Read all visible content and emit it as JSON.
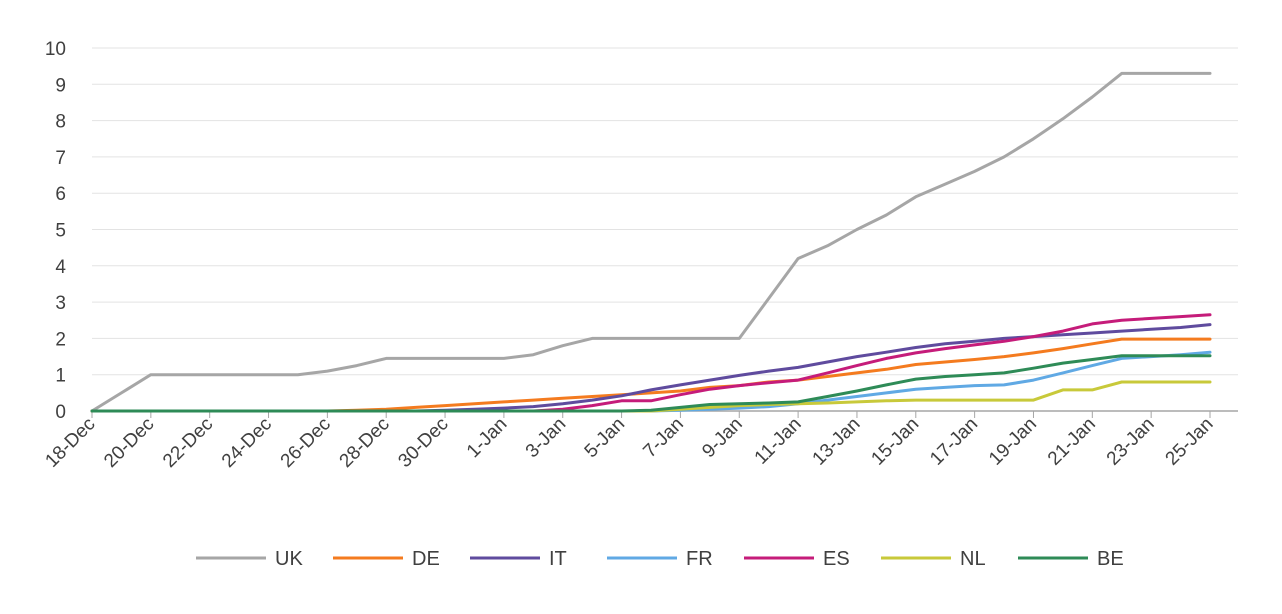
{
  "chart_data": {
    "type": "line",
    "title": "",
    "xlabel": "",
    "ylabel": "",
    "ylim": [
      0,
      10
    ],
    "yticks": [
      0,
      1,
      2,
      3,
      4,
      5,
      6,
      7,
      8,
      9,
      10
    ],
    "grid": "horizontal",
    "legend": "bottom",
    "x": [
      "18-Dec",
      "19-Dec",
      "20-Dec",
      "21-Dec",
      "22-Dec",
      "23-Dec",
      "24-Dec",
      "25-Dec",
      "26-Dec",
      "27-Dec",
      "28-Dec",
      "29-Dec",
      "30-Dec",
      "31-Dec",
      "1-Jan",
      "2-Jan",
      "3-Jan",
      "4-Jan",
      "5-Jan",
      "6-Jan",
      "7-Jan",
      "8-Jan",
      "9-Jan",
      "10-Jan",
      "11-Jan",
      "12-Jan",
      "13-Jan",
      "14-Jan",
      "15-Jan",
      "16-Jan",
      "17-Jan",
      "18-Jan",
      "19-Jan",
      "20-Jan",
      "21-Jan",
      "22-Jan",
      "23-Jan",
      "24-Jan",
      "25-Jan"
    ],
    "xtick_labels": [
      "18-Dec",
      "20-Dec",
      "22-Dec",
      "24-Dec",
      "26-Dec",
      "28-Dec",
      "30-Dec",
      "1-Jan",
      "3-Jan",
      "5-Jan",
      "7-Jan",
      "9-Jan",
      "11-Jan",
      "13-Jan",
      "15-Jan",
      "17-Jan",
      "19-Jan",
      "21-Jan",
      "23-Jan",
      "25-Jan"
    ],
    "series": [
      {
        "name": "UK",
        "color": "#a6a6a6",
        "values": [
          0,
          0.5,
          1,
          1,
          1,
          1,
          1,
          1,
          1.1,
          1.25,
          1.45,
          1.45,
          1.45,
          1.45,
          1.45,
          1.55,
          1.8,
          2,
          2,
          2,
          2,
          2,
          2,
          3.1,
          4.2,
          4.55,
          5,
          5.4,
          5.9,
          6.25,
          6.6,
          7,
          7.5,
          8.05,
          8.65,
          9.3,
          9.3,
          9.3,
          9.3
        ]
      },
      {
        "name": "DE",
        "color": "#f47b1f",
        "values": [
          0,
          0,
          0,
          0,
          0,
          0,
          0,
          0,
          0,
          0.02,
          0.05,
          0.1,
          0.15,
          0.2,
          0.25,
          0.3,
          0.35,
          0.4,
          0.45,
          0.5,
          0.55,
          0.65,
          0.7,
          0.8,
          0.85,
          0.95,
          1.05,
          1.15,
          1.28,
          1.35,
          1.42,
          1.5,
          1.6,
          1.72,
          1.85,
          1.98,
          1.98,
          1.98,
          1.98
        ]
      },
      {
        "name": "IT",
        "color": "#5f4b9e",
        "values": [
          0,
          0,
          0,
          0,
          0,
          0,
          0,
          0,
          0,
          0,
          0,
          0,
          0.02,
          0.05,
          0.08,
          0.12,
          0.2,
          0.3,
          0.42,
          0.58,
          0.72,
          0.85,
          0.98,
          1.1,
          1.2,
          1.35,
          1.5,
          1.62,
          1.75,
          1.85,
          1.92,
          2,
          2.05,
          2.1,
          2.15,
          2.2,
          2.25,
          2.3,
          2.38
        ]
      },
      {
        "name": "FR",
        "color": "#60a9e4",
        "values": [
          0,
          0,
          0,
          0,
          0,
          0,
          0,
          0,
          0,
          0,
          0,
          0,
          0,
          0,
          0,
          0,
          0,
          0,
          0,
          0,
          0.02,
          0.05,
          0.08,
          0.12,
          0.2,
          0.3,
          0.4,
          0.5,
          0.6,
          0.65,
          0.7,
          0.72,
          0.85,
          1.05,
          1.25,
          1.45,
          1.5,
          1.55,
          1.62
        ]
      },
      {
        "name": "ES",
        "color": "#c51c7a",
        "values": [
          0,
          0,
          0,
          0,
          0,
          0,
          0,
          0,
          0,
          0,
          0,
          0,
          0,
          0,
          0,
          0,
          0.05,
          0.15,
          0.28,
          0.28,
          0.45,
          0.6,
          0.7,
          0.78,
          0.85,
          1.05,
          1.25,
          1.45,
          1.6,
          1.72,
          1.82,
          1.92,
          2.05,
          2.2,
          2.4,
          2.5,
          2.55,
          2.6,
          2.65
        ]
      },
      {
        "name": "NL",
        "color": "#c8c93a",
        "values": [
          0,
          0,
          0,
          0,
          0,
          0,
          0,
          0,
          0,
          0,
          0,
          0,
          0,
          0,
          0,
          0,
          0,
          0,
          0,
          0,
          0.05,
          0.1,
          0.15,
          0.18,
          0.2,
          0.22,
          0.25,
          0.28,
          0.3,
          0.3,
          0.3,
          0.3,
          0.3,
          0.58,
          0.58,
          0.8,
          0.8,
          0.8,
          0.8
        ]
      },
      {
        "name": "BE",
        "color": "#2e8b57",
        "values": [
          0,
          0,
          0,
          0,
          0,
          0,
          0,
          0,
          0,
          0,
          0,
          0,
          0,
          0,
          0,
          0,
          0,
          0,
          0,
          0.02,
          0.1,
          0.18,
          0.2,
          0.22,
          0.25,
          0.4,
          0.55,
          0.72,
          0.88,
          0.95,
          1,
          1.05,
          1.18,
          1.32,
          1.42,
          1.52,
          1.52,
          1.52,
          1.52
        ]
      }
    ]
  }
}
